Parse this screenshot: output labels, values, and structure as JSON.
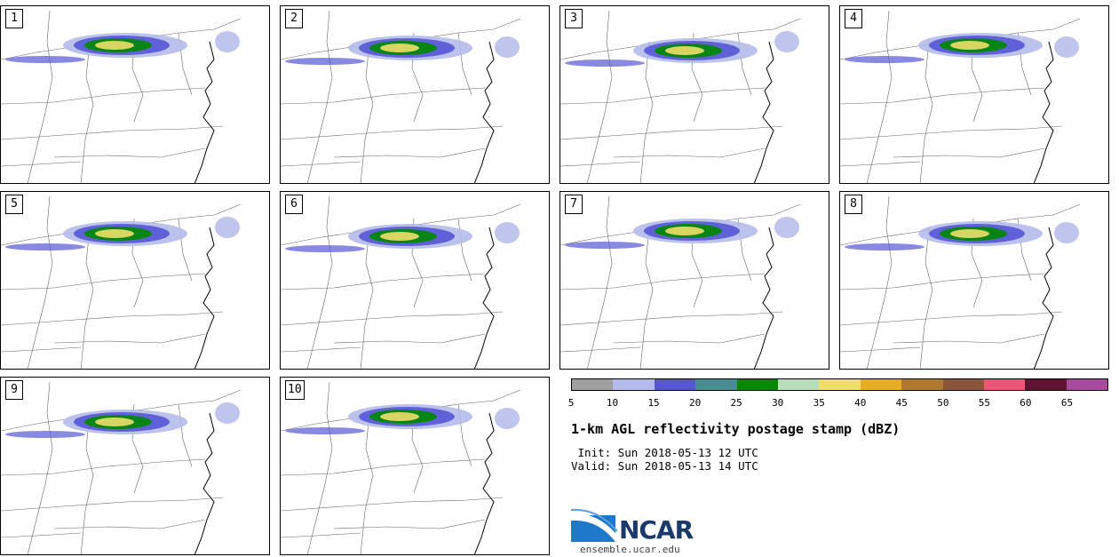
{
  "panels": [
    {
      "label": "1"
    },
    {
      "label": "2"
    },
    {
      "label": "3"
    },
    {
      "label": "4"
    },
    {
      "label": "5"
    },
    {
      "label": "6"
    },
    {
      "label": "7"
    },
    {
      "label": "8"
    },
    {
      "label": "9"
    },
    {
      "label": "10"
    }
  ],
  "colorbar": {
    "colors": [
      "#a0a0a0",
      "#b4bbea",
      "#5757d6",
      "#478e92",
      "#008a00",
      "#b9ddb9",
      "#f0de6b",
      "#e9ad1f",
      "#af7a2f",
      "#8c5438",
      "#ed5577",
      "#5e1433",
      "#a94a9e"
    ],
    "ticks": [
      "5",
      "10",
      "15",
      "20",
      "25",
      "30",
      "35",
      "40",
      "45",
      "50",
      "55",
      "60",
      "65"
    ]
  },
  "title": "1-km AGL reflectivity postage stamp (dBZ)",
  "init": " Init: Sun 2018-05-13 12 UTC",
  "valid": "Valid: Sun 2018-05-13 14 UTC",
  "logo_text": "NCAR",
  "site": "ensemble.ucar.edu"
}
